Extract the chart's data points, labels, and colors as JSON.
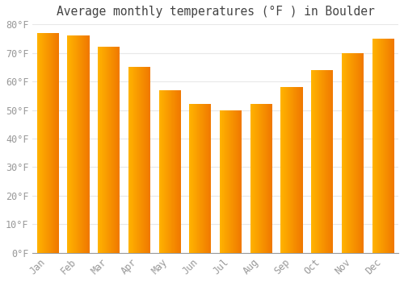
{
  "title": "Average monthly temperatures (°F ) in Boulder",
  "months": [
    "Jan",
    "Feb",
    "Mar",
    "Apr",
    "May",
    "Jun",
    "Jul",
    "Aug",
    "Sep",
    "Oct",
    "Nov",
    "Dec"
  ],
  "values": [
    77,
    76,
    72,
    65,
    57,
    52,
    50,
    52,
    58,
    64,
    70,
    75
  ],
  "bar_color_left": "#FFB300",
  "bar_color_right": "#F07800",
  "background_color": "#FFFFFF",
  "plot_bg_color": "#FFFFFF",
  "grid_color": "#E8E8E8",
  "ylim": [
    0,
    80
  ],
  "yticks": [
    0,
    10,
    20,
    30,
    40,
    50,
    60,
    70,
    80
  ],
  "ytick_labels": [
    "0°F",
    "10°F",
    "20°F",
    "30°F",
    "40°F",
    "50°F",
    "60°F",
    "70°F",
    "80°F"
  ],
  "title_fontsize": 10.5,
  "tick_fontsize": 8.5,
  "tick_color": "#999999",
  "title_color": "#444444",
  "bar_width": 0.72
}
